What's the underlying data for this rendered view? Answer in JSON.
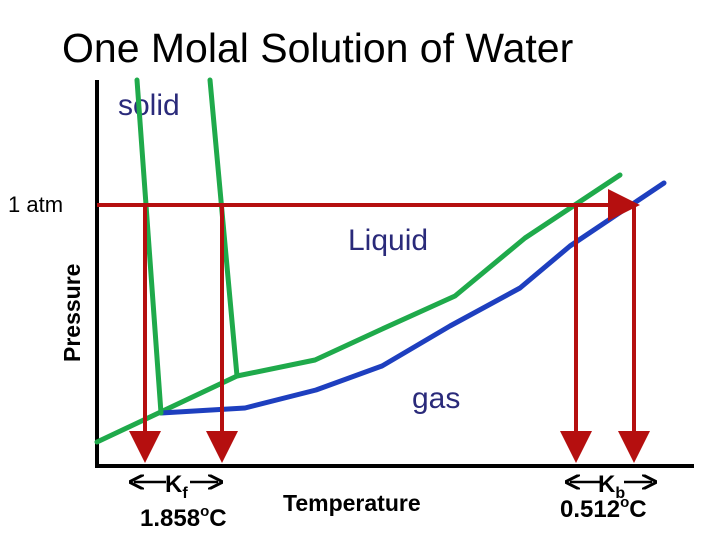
{
  "title": "One Molal Solution of Water",
  "axes": {
    "ylabel": "Pressure",
    "xlabel": "Temperature",
    "pressure_tick": "1 atm"
  },
  "regions": {
    "solid": "solid",
    "liquid": "Liquid",
    "gas": "gas"
  },
  "freezing": {
    "symbol": "K",
    "subscript": "f",
    "value": "1.858",
    "degree": "o",
    "unit": "C"
  },
  "boiling": {
    "symbol": "K",
    "subscript": "b",
    "value": "0.512",
    "degree": "o",
    "unit": "C"
  },
  "colors": {
    "pure_water_curve": "#1faa4b",
    "solution_curve": "#1e3fbf",
    "marker_lines": "#b50f0f",
    "region_text": "#2a2a7a",
    "axes": "#000000"
  }
}
